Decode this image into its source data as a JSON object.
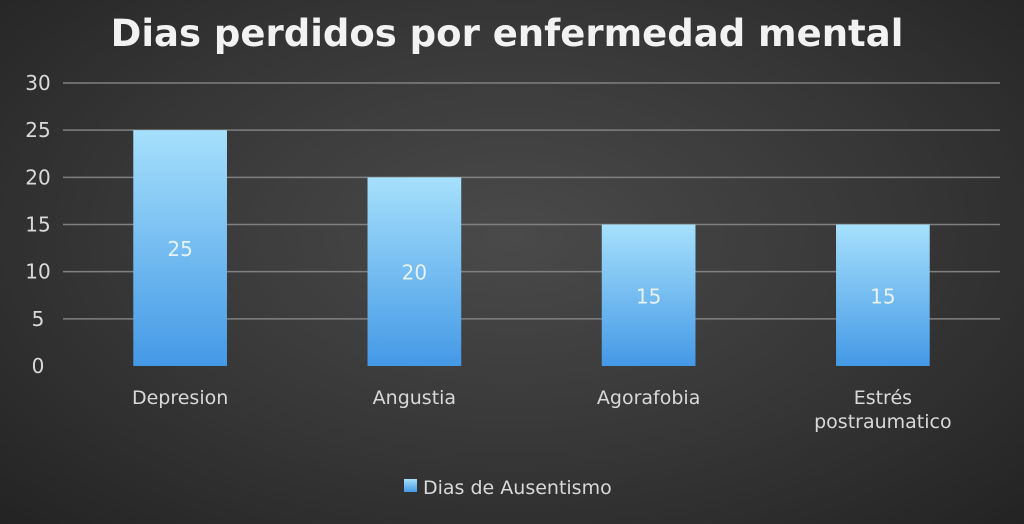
{
  "chart_data": {
    "type": "bar",
    "title": "Dias perdidos por enfermedad mental",
    "categories": [
      "Depresion",
      "Angustia",
      "Agorafobia",
      "Estrés postraumatico"
    ],
    "category_lines": [
      [
        "Depresion"
      ],
      [
        "Angustia"
      ],
      [
        "Agorafobia"
      ],
      [
        "Estrés",
        "postraumatico"
      ]
    ],
    "series": [
      {
        "name": "Dias de Ausentismo",
        "values": [
          25,
          20,
          15,
          15
        ]
      }
    ],
    "xlabel": "",
    "ylabel": "",
    "ylim": [
      0,
      30
    ],
    "yticks": [
      0,
      5,
      10,
      15,
      20,
      25,
      30
    ],
    "grid": true,
    "legend": "bottom",
    "colors": {
      "bar_top": "#a6e0fc",
      "bar_bottom": "#4499e6",
      "text": "#d9d9d9",
      "grid": "#808080"
    }
  }
}
